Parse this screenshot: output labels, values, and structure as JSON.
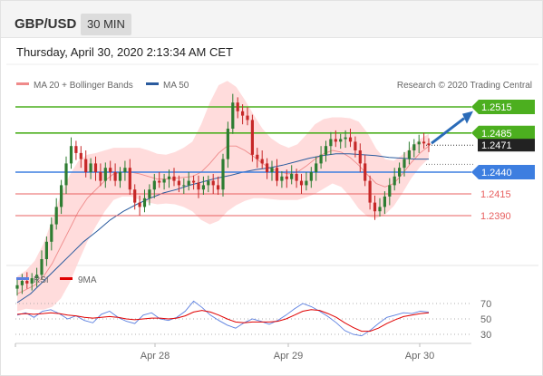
{
  "header": {
    "pair": "GBP/USD",
    "timeframe": "30 MIN"
  },
  "datetime": "Thursday, April 30, 2020 2:13:34 AM CET",
  "colors": {
    "up": "#2e7d32",
    "down": "#c62828",
    "ma20": "#ef8a8a",
    "ma50": "#2a5b9e",
    "band": "#ffd6d6",
    "resistance": "#4caf1f",
    "pivot": "#3d7ee0",
    "support": "#e86060",
    "arrow": "#2a6bb8",
    "rsi": "#5b7fe0",
    "rsi_ma": "#e00000"
  },
  "legend": {
    "ma20": "MA 20 + Bollinger Bands",
    "ma50": "MA 50",
    "credit": "Research © 2020 Trading Central"
  },
  "levels": [
    {
      "label": "1.2515",
      "value": 1.2515,
      "kind": "resistance"
    },
    {
      "label": "1.2485",
      "value": 1.2485,
      "kind": "resistance"
    },
    {
      "label": "1.2440",
      "value": 1.244,
      "kind": "pivot"
    },
    {
      "label": "1.2415",
      "value": 1.2415,
      "kind": "support"
    },
    {
      "label": "1.2390",
      "value": 1.239,
      "kind": "support"
    }
  ],
  "current_price": {
    "label": "1.2471",
    "value": 1.2471
  },
  "rsi_panel": {
    "legend_rsi": "RSI",
    "legend_ma": "9MA",
    "levels": [
      "70",
      "50",
      "30"
    ]
  },
  "x_axis": {
    "ticks": [
      "Apr 28",
      "Apr 29",
      "Apr 30"
    ]
  },
  "chart_data": {
    "type": "candlestick",
    "series": [
      {
        "name": "GBP/USD",
        "close": [
          1.231,
          1.2315,
          1.2312,
          1.2318,
          1.2322,
          1.234,
          1.236,
          1.238,
          1.24,
          1.2425,
          1.245,
          1.247,
          1.2462,
          1.2455,
          1.244,
          1.245,
          1.244,
          1.243,
          1.2445,
          1.244,
          1.243,
          1.244,
          1.2445,
          1.242,
          1.2405,
          1.24,
          1.241,
          1.242,
          1.243,
          1.2428,
          1.2432,
          1.2435,
          1.243,
          1.2425,
          1.2425,
          1.243,
          1.2428,
          1.242,
          1.2425,
          1.243,
          1.2425,
          1.242,
          1.2455,
          1.249,
          1.252,
          1.251,
          1.2505,
          1.25,
          1.246,
          1.2455,
          1.245,
          1.244,
          1.2445,
          1.243,
          1.2435,
          1.2432,
          1.2438,
          1.243,
          1.2425,
          1.243,
          1.244,
          1.245,
          1.246,
          1.247,
          1.2478,
          1.2475,
          1.2478,
          1.248,
          1.2475,
          1.2465,
          1.245,
          1.243,
          1.2405,
          1.2395,
          1.24,
          1.2412,
          1.2425,
          1.2435,
          1.2445,
          1.2455,
          1.2465,
          1.2472,
          1.2475,
          1.2473,
          1.2471
        ]
      },
      {
        "name": "MA 20",
        "values": [
          1.23,
          1.2305,
          1.231,
          1.232,
          1.2335,
          1.2355,
          1.2375,
          1.2395,
          1.241,
          1.242,
          1.243,
          1.2438,
          1.244,
          1.244,
          1.2438,
          1.2435,
          1.2432,
          1.2432,
          1.2433,
          1.2434,
          1.2435,
          1.244,
          1.245,
          1.2462,
          1.247,
          1.247,
          1.2465,
          1.2458,
          1.245,
          1.2444,
          1.244,
          1.2438,
          1.244,
          1.2447,
          1.2455,
          1.2461,
          1.2465,
          1.2463,
          1.2457,
          1.2448,
          1.2437,
          1.2427,
          1.2423,
          1.2427,
          1.2438,
          1.2451,
          1.2462,
          1.247
        ]
      },
      {
        "name": "MA 50",
        "values": [
          1.229,
          1.23,
          1.2315,
          1.233,
          1.2345,
          1.236,
          1.2372,
          1.2385,
          1.2395,
          1.2403,
          1.241,
          1.2416,
          1.242,
          1.2425,
          1.2429,
          1.2433,
          1.2436,
          1.244,
          1.2443,
          1.2445,
          1.2448,
          1.2452,
          1.2456,
          1.2459,
          1.2461,
          1.2461,
          1.246,
          1.2459,
          1.2457,
          1.2456,
          1.2455,
          1.2455
        ]
      },
      {
        "name": "RSI",
        "values": [
          55,
          58,
          52,
          60,
          62,
          57,
          50,
          54,
          48,
          45,
          56,
          60,
          52,
          47,
          44,
          55,
          58,
          50,
          48,
          52,
          60,
          73,
          65,
          55,
          48,
          42,
          38,
          45,
          50,
          47,
          43,
          48,
          55,
          63,
          70,
          66,
          60,
          53,
          45,
          35,
          30,
          28,
          35,
          44,
          52,
          55,
          58,
          57,
          60,
          59
        ]
      },
      {
        "name": "9MA",
        "values": [
          56,
          57,
          56,
          57,
          58,
          57,
          55,
          54,
          52,
          51,
          52,
          53,
          52,
          50,
          49,
          50,
          51,
          51,
          50,
          51,
          54,
          59,
          61,
          59,
          55,
          50,
          46,
          45,
          46,
          46,
          46,
          47,
          50,
          55,
          60,
          62,
          61,
          57,
          52,
          45,
          39,
          34,
          34,
          38,
          44,
          49,
          53,
          55,
          57,
          58
        ]
      }
    ],
    "ylim": [
      1.229,
      1.2525
    ],
    "rsi_ylim": [
      10,
      85
    ]
  }
}
